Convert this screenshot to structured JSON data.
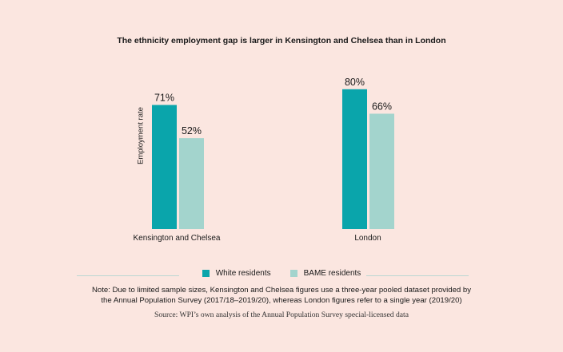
{
  "chart_data": {
    "type": "bar",
    "title": "The ethnicity employment gap is larger in Kensington and Chelsea than in London",
    "xlabel": "",
    "ylabel": "Employment rate",
    "ylim": [
      0,
      100
    ],
    "grid": false,
    "legend_position": "bottom",
    "categories": [
      "Kensington and Chelsea",
      "London"
    ],
    "series": [
      {
        "name": "White residents",
        "values": [
          71,
          80
        ],
        "labels": [
          "71%",
          "80%"
        ],
        "color": "#0aa5ab"
      },
      {
        "name": "BAME residents",
        "values": [
          52,
          66
        ],
        "labels": [
          "52%",
          "66%"
        ],
        "color": "#a3d4cd"
      }
    ]
  },
  "legend": {
    "white_label": "White residents",
    "bame_label": "BAME residents"
  },
  "note": {
    "line1": "Note: Due to limited sample sizes, Kensington and Chelsea figures use a three-year pooled dataset provided by",
    "line2": "the Annual Population Survey (2017/18–2019/20), whereas London figures refer to a single year (2019/20)"
  },
  "source": "Source: WPI’s own analysis of the Annual Population Survey special-licensed data",
  "colors": {
    "background": "#fbe6e0",
    "white": "#0aa5ab",
    "bame": "#a3d4cd",
    "rule": "#b9d7d3"
  }
}
